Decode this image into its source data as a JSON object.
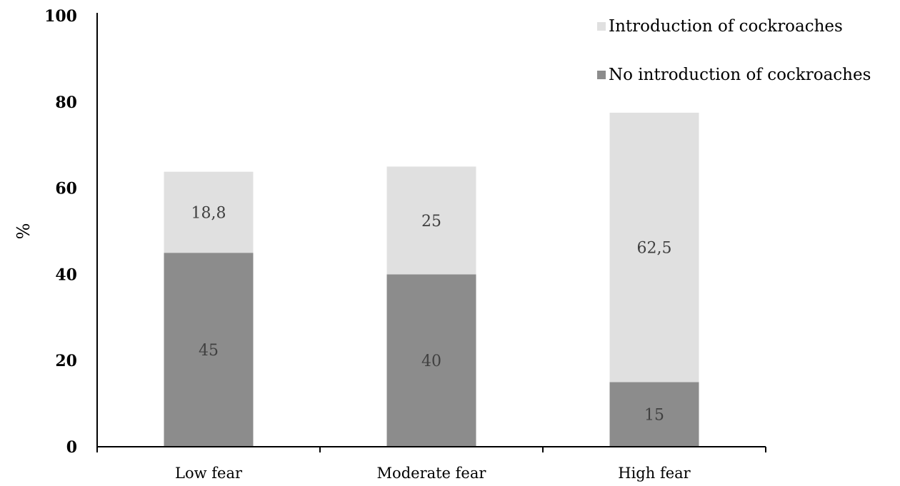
{
  "chart_data": {
    "type": "bar",
    "stacked": true,
    "categories": [
      "Low fear",
      "Moderate fear",
      "High fear"
    ],
    "series": [
      {
        "name": "No introduction of cockroaches",
        "values": [
          45,
          40,
          15
        ],
        "labels": [
          "45",
          "40",
          "15"
        ],
        "color": "#8c8c8c"
      },
      {
        "name": "Introduction of cockroaches",
        "values": [
          18.8,
          25,
          62.5
        ],
        "labels": [
          "18,8",
          "25",
          "62,5"
        ],
        "color": "#e0e0e0"
      }
    ],
    "ylabel": "%",
    "xlabel": "",
    "ylim": [
      0,
      100
    ],
    "yticks": [
      0,
      20,
      40,
      60,
      80,
      100
    ],
    "grid": false,
    "legend": {
      "placement": "top-right",
      "order": [
        "Introduction of cockroaches",
        "No introduction of cockroaches"
      ]
    }
  }
}
